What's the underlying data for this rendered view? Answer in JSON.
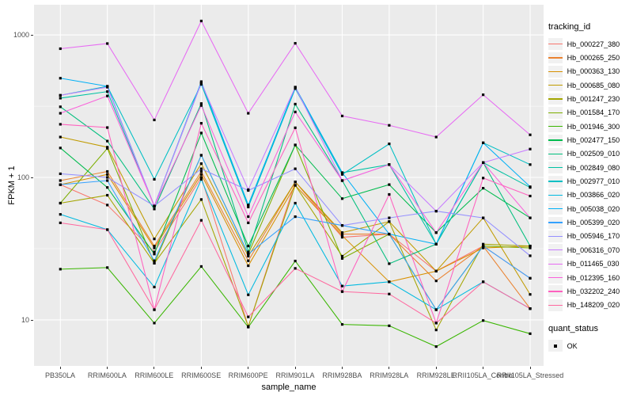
{
  "axes": {
    "y_title": "FPKM + 1",
    "x_title": "sample_name",
    "y_ticks": [
      {
        "label": "1000",
        "value": 1000
      },
      {
        "label": "100",
        "value": 100
      },
      {
        "label": "10",
        "value": 10
      }
    ]
  },
  "legend": {
    "tracking_title": "tracking_id",
    "quant_title": "quant_status",
    "quant_items": [
      {
        "label": "OK",
        "marker": "black-square"
      }
    ]
  },
  "chart_data": {
    "type": "line",
    "title": "",
    "xlabel": "sample_name",
    "ylabel": "FPKM + 1",
    "y_scale": "log10",
    "ylim": [
      4.8,
      1585
    ],
    "grid": true,
    "legend_position": "right",
    "point_marker": "black-square",
    "panel_background": "#EBEBEB",
    "gridline_color": "#FFFFFF",
    "quant_status": "OK",
    "y_major_gridlines": [
      10,
      100,
      1000
    ],
    "y_minor_gridlines": [
      31.6,
      316
    ],
    "categories": [
      "PB350LA",
      "RRIM600LA",
      "RRIM600LE",
      "RRIM600SE",
      "RRIM600PE",
      "RRIM901LA",
      "RRIM928BA",
      "RRIM928LA",
      "RRIM928LE",
      "RRII105LA_Control",
      "RRII105LA_Stressed"
    ],
    "series": [
      {
        "name": "Hb_000227_380",
        "color": "#F8766D",
        "values": [
          89,
          64,
          30,
          100,
          9,
          93,
          38,
          40,
          22,
          33,
          19.6
        ]
      },
      {
        "name": "Hb_000265_250",
        "color": "#EA8331",
        "values": [
          95,
          110,
          33,
          110,
          26,
          93,
          40,
          40,
          18.8,
          33,
          12
        ]
      },
      {
        "name": "Hb_000363_130",
        "color": "#D89000",
        "values": [
          89,
          105,
          32,
          105,
          24,
          88,
          39,
          18.5,
          22,
          32,
          33
        ]
      },
      {
        "name": "Hb_000685_080",
        "color": "#C09B00",
        "values": [
          192,
          163,
          37,
          125,
          28,
          93,
          41,
          49,
          22,
          52,
          15.1
        ]
      },
      {
        "name": "Hb_001247_230",
        "color": "#A3A500",
        "values": [
          66,
          75,
          25,
          70,
          9,
          88,
          28,
          49,
          8.5,
          34,
          33
        ]
      },
      {
        "name": "Hb_001584_170",
        "color": "#7CAE00",
        "values": [
          66,
          160,
          25,
          143,
          29,
          169,
          27,
          40,
          11.8,
          33,
          32
        ]
      },
      {
        "name": "Hb_001946_300",
        "color": "#39B600",
        "values": [
          22.7,
          23.3,
          9.5,
          23.7,
          8.9,
          25.9,
          9.3,
          9.1,
          6.5,
          9.9,
          8
        ]
      },
      {
        "name": "Hb_002477_150",
        "color": "#00BB4E",
        "values": [
          161,
          85,
          29,
          205,
          33,
          169,
          71,
          89,
          41,
          84,
          52
        ]
      },
      {
        "name": "Hb_002509_010",
        "color": "#00BF7D",
        "values": [
          313,
          180,
          60,
          330,
          30,
          327,
          95,
          24.8,
          34,
          127,
          33
        ]
      },
      {
        "name": "Hb_002849_080",
        "color": "#00C1A3",
        "values": [
          360,
          400,
          63,
          460,
          64,
          430,
          108,
          123,
          34,
          127,
          85
        ]
      },
      {
        "name": "Hb_002977_010",
        "color": "#00BFC4",
        "values": [
          377,
          436,
          97,
          450,
          62,
          420,
          105,
          172,
          34,
          175,
          123
        ]
      },
      {
        "name": "Hb_003866_020",
        "color": "#00BAE0",
        "values": [
          55,
          43,
          17,
          97,
          15,
          66,
          17.3,
          18.5,
          11.8,
          18.5,
          12
        ]
      },
      {
        "name": "Hb_005038_020",
        "color": "#00B0F6",
        "values": [
          497,
          436,
          63,
          470,
          64,
          430,
          108,
          40,
          34,
          175,
          86
        ]
      },
      {
        "name": "Hb_005399_020",
        "color": "#35A2FF",
        "values": [
          89,
          95,
          26,
          143,
          29,
          53,
          46,
          40,
          11.8,
          33,
          19.6
        ]
      },
      {
        "name": "Hb_005946_170",
        "color": "#9590FF",
        "values": [
          106,
          100,
          63,
          115,
          81,
          115,
          46,
          52,
          58,
          52,
          28.2
        ]
      },
      {
        "name": "Hb_006316_070",
        "color": "#C77CFF",
        "values": [
          377,
          430,
          63,
          460,
          82,
          430,
          95,
          123,
          58,
          127,
          158
        ]
      },
      {
        "name": "Hb_011465_030",
        "color": "#E76BF3",
        "values": [
          800,
          870,
          253,
          1253,
          282,
          873,
          270,
          232,
          192,
          380,
          199
        ]
      },
      {
        "name": "Hb_012395_160",
        "color": "#FA62DB",
        "values": [
          282,
          373,
          63,
          320,
          53,
          288,
          95,
          123,
          41,
          127,
          52
        ]
      },
      {
        "name": "Hb_032202_240",
        "color": "#FF61BF",
        "values": [
          236,
          224,
          11.8,
          240,
          48,
          223,
          15.8,
          76,
          9.5,
          99,
          74
        ]
      },
      {
        "name": "Hb_148209_020",
        "color": "#FF689F",
        "values": [
          48,
          43,
          11.8,
          50,
          10.5,
          23,
          15.8,
          15.2,
          9.5,
          18.5,
          12
        ]
      }
    ]
  }
}
